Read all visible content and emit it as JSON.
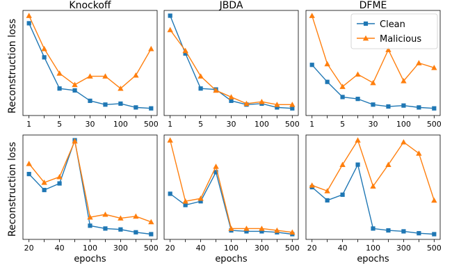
{
  "figure": {
    "ylabel": "Reconstruction loss",
    "legend": {
      "placement": "top-right",
      "panel": 2,
      "entries": [
        "Clean",
        "Malicious"
      ]
    },
    "colors": {
      "clean": "#1f77b4",
      "malicious": "#ff7f0e"
    }
  },
  "chart_data": [
    {
      "type": "line",
      "title": "Knockoff",
      "xlabel": "",
      "ylabel": "Reconstruction loss",
      "x": [
        1,
        2,
        3,
        4,
        5,
        6,
        7,
        8,
        9
      ],
      "xtick_labels": [
        "1",
        "",
        "5",
        "",
        "30",
        "",
        "100",
        "",
        "500"
      ],
      "ylim": [
        0,
        1
      ],
      "series": [
        {
          "name": "Clean",
          "marker": "square",
          "values": [
            0.92,
            0.56,
            0.23,
            0.21,
            0.1,
            0.06,
            0.07,
            0.03,
            0.02
          ]
        },
        {
          "name": "Malicious",
          "marker": "triangle",
          "values": [
            1.0,
            0.65,
            0.39,
            0.27,
            0.36,
            0.36,
            0.23,
            0.37,
            0.65
          ]
        }
      ]
    },
    {
      "type": "line",
      "title": "JBDA",
      "xlabel": "",
      "ylabel": "",
      "x": [
        1,
        2,
        3,
        4,
        5,
        6,
        7,
        8,
        9
      ],
      "xtick_labels": [
        "1",
        "",
        "5",
        "",
        "30",
        "",
        "100",
        "",
        "500"
      ],
      "ylim": [
        0,
        1
      ],
      "series": [
        {
          "name": "Clean",
          "marker": "square",
          "values": [
            1.0,
            0.6,
            0.23,
            0.22,
            0.1,
            0.06,
            0.07,
            0.03,
            0.02
          ]
        },
        {
          "name": "Malicious",
          "marker": "triangle",
          "values": [
            0.85,
            0.63,
            0.36,
            0.21,
            0.14,
            0.07,
            0.09,
            0.06,
            0.06
          ]
        }
      ]
    },
    {
      "type": "line",
      "title": "DFME",
      "xlabel": "",
      "ylabel": "",
      "x": [
        1,
        2,
        3,
        4,
        5,
        6,
        7,
        8,
        9
      ],
      "xtick_labels": [
        "1",
        "",
        "5",
        "",
        "30",
        "",
        "100",
        "",
        "500"
      ],
      "ylim": [
        0,
        1
      ],
      "series": [
        {
          "name": "Clean",
          "marker": "square",
          "values": [
            0.48,
            0.3,
            0.14,
            0.12,
            0.06,
            0.04,
            0.05,
            0.03,
            0.02
          ]
        },
        {
          "name": "Malicious",
          "marker": "triangle",
          "values": [
            1.0,
            0.49,
            0.25,
            0.38,
            0.29,
            0.64,
            0.31,
            0.5,
            0.45
          ]
        }
      ]
    },
    {
      "type": "line",
      "title": "",
      "xlabel": "epochs",
      "ylabel": "Reconstruction loss",
      "x": [
        1,
        2,
        3,
        4,
        5,
        6,
        7,
        8,
        9
      ],
      "xtick_labels": [
        "20",
        "",
        "40",
        "",
        "100",
        "",
        "300",
        "",
        "500"
      ],
      "ylim": [
        0,
        1
      ],
      "series": [
        {
          "name": "Clean",
          "marker": "square",
          "values": [
            0.64,
            0.47,
            0.54,
            1.0,
            0.09,
            0.06,
            0.05,
            0.02,
            0.0
          ]
        },
        {
          "name": "Malicious",
          "marker": "triangle",
          "values": [
            0.75,
            0.55,
            0.61,
            0.99,
            0.18,
            0.21,
            0.17,
            0.19,
            0.13
          ]
        }
      ]
    },
    {
      "type": "line",
      "title": "",
      "xlabel": "epochs",
      "ylabel": "",
      "x": [
        1,
        2,
        3,
        4,
        5,
        6,
        7,
        8,
        9
      ],
      "xtick_labels": [
        "20",
        "",
        "40",
        "",
        "100",
        "",
        "300",
        "",
        "500"
      ],
      "ylim": [
        0,
        1
      ],
      "series": [
        {
          "name": "Clean",
          "marker": "square",
          "values": [
            0.43,
            0.31,
            0.35,
            0.66,
            0.04,
            0.03,
            0.03,
            0.02,
            0.0
          ]
        },
        {
          "name": "Malicious",
          "marker": "triangle",
          "values": [
            1.0,
            0.35,
            0.38,
            0.72,
            0.06,
            0.06,
            0.06,
            0.04,
            0.02
          ]
        }
      ]
    },
    {
      "type": "line",
      "title": "",
      "xlabel": "epochs",
      "ylabel": "",
      "x": [
        1,
        2,
        3,
        4,
        5,
        6,
        7,
        8,
        9
      ],
      "xtick_labels": [
        "20",
        "",
        "40",
        "",
        "100",
        "",
        "300",
        "",
        "500"
      ],
      "ylim": [
        0,
        1
      ],
      "series": [
        {
          "name": "Clean",
          "marker": "square",
          "values": [
            0.5,
            0.36,
            0.42,
            0.74,
            0.06,
            0.04,
            0.03,
            0.01,
            0.0
          ]
        },
        {
          "name": "Malicious",
          "marker": "triangle",
          "values": [
            0.52,
            0.46,
            0.74,
            1.0,
            0.51,
            0.74,
            0.98,
            0.86,
            0.36
          ]
        }
      ]
    }
  ]
}
